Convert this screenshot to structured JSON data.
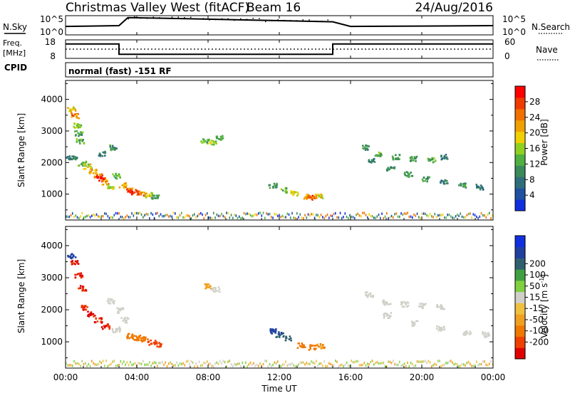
{
  "header": {
    "title": "Christmas Valley West (fitACF)",
    "beam": "Beam 16",
    "date": "24/Aug/2016"
  },
  "params": {
    "nsky_label": "N.Sky",
    "nsky_ticks": [
      "10^5",
      "10^0"
    ],
    "nsearch_label": "N.Search",
    "nsearch_ticks": [
      "10^5",
      "10^0"
    ],
    "freq_label": "Freq.",
    "freq_unit": "[MHz]",
    "freq_ticks": [
      "18",
      "8"
    ],
    "nave_label": "Nave",
    "nave_ticks": [
      "60",
      "0"
    ],
    "cpid_label": "CPID",
    "cpid_value": "normal (fast) -151 RF"
  },
  "x_axis": {
    "label": "Time UT",
    "ticks": [
      "00:00",
      "04:00",
      "08:00",
      "12:00",
      "16:00",
      "20:00",
      "00:00"
    ]
  },
  "colors": {
    "power_scale": [
      "#1030e0",
      "#2050a0",
      "#2e6e7a",
      "#3a8a5a",
      "#50b040",
      "#90d020",
      "#f0d000",
      "#f0a000",
      "#f07000",
      "#f03a00",
      "#ff0000"
    ],
    "velocity_scale": [
      "#e00000",
      "#f04000",
      "#f07800",
      "#f0a020",
      "#f0c040",
      "#d0d0c8",
      "#80d040",
      "#40a040",
      "#306070",
      "#2040a0",
      "#1030e0"
    ]
  },
  "chart_data": [
    {
      "type": "line",
      "name": "sky-and-search-noise",
      "title": "",
      "xlabel": "",
      "ylabel": "N.Sky",
      "y2label": "N.Search",
      "log_scale": true,
      "x": [
        0,
        3,
        3.5,
        7,
        11,
        15,
        16,
        20,
        24
      ],
      "series": [
        {
          "name": "N.Sky",
          "values": [
            2.2,
            2.4,
            4.5,
            4.2,
            3.8,
            3.4,
            2.2,
            2.3,
            2.4
          ]
        }
      ]
    },
    {
      "type": "line",
      "name": "frequency-and-nave",
      "title": "",
      "xlabel": "",
      "ylabel": "Freq. [MHz]",
      "ylim": [
        8,
        18
      ],
      "y2label": "Nave",
      "y2lim": [
        0,
        60
      ],
      "x": [
        0,
        3,
        3,
        15,
        15,
        24
      ],
      "series": [
        {
          "name": "Freq.",
          "values": [
            15.8,
            15.8,
            10.2,
            10.2,
            15.8,
            15.8
          ]
        },
        {
          "name": "Nave",
          "constant": 30
        }
      ]
    },
    {
      "type": "heatmap",
      "name": "power",
      "xlabel": "Time UT",
      "ylabel": "Slant Range [km]",
      "colorbar_label": "Power [dB]",
      "colorbar_ticks": [
        4,
        8,
        12,
        16,
        20,
        24,
        28
      ],
      "clim": [
        0,
        32
      ],
      "xlim": [
        0,
        24
      ],
      "ylim": [
        180,
        4600
      ],
      "y_ticks": [
        1000,
        2000,
        3000,
        4000
      ],
      "points": [
        [
          0.3,
          3700,
          20
        ],
        [
          0.5,
          3500,
          24
        ],
        [
          0.6,
          3200,
          16
        ],
        [
          0.7,
          2950,
          12
        ],
        [
          0.8,
          2700,
          14
        ],
        [
          0.1,
          2200,
          8
        ],
        [
          0.4,
          2150,
          10
        ],
        [
          0.9,
          2000,
          14
        ],
        [
          1.2,
          1900,
          18
        ],
        [
          1.5,
          1750,
          22
        ],
        [
          1.8,
          1600,
          26
        ],
        [
          2.0,
          1500,
          30
        ],
        [
          2.2,
          1400,
          22
        ],
        [
          2.5,
          1250,
          16
        ],
        [
          2.8,
          1600,
          14
        ],
        [
          3.2,
          1300,
          22
        ],
        [
          3.5,
          1150,
          26
        ],
        [
          3.8,
          1100,
          30
        ],
        [
          4.2,
          1050,
          24
        ],
        [
          4.6,
          1000,
          18
        ],
        [
          5.0,
          950,
          12
        ],
        [
          2.0,
          2300,
          8
        ],
        [
          2.6,
          2500,
          10
        ],
        [
          7.8,
          2700,
          14
        ],
        [
          8.2,
          2650,
          16
        ],
        [
          8.6,
          2800,
          12
        ],
        [
          11.6,
          1300,
          10
        ],
        [
          12.2,
          1150,
          14
        ],
        [
          12.8,
          1050,
          18
        ],
        [
          13.5,
          950,
          22
        ],
        [
          13.8,
          900,
          26
        ],
        [
          14.2,
          950,
          20
        ],
        [
          16.8,
          2500,
          10
        ],
        [
          17.5,
          2300,
          14
        ],
        [
          18.5,
          2200,
          12
        ],
        [
          19.5,
          2150,
          10
        ],
        [
          20.5,
          2100,
          12
        ],
        [
          21.2,
          2200,
          8
        ],
        [
          17.2,
          2100,
          8
        ],
        [
          18.2,
          1850,
          10
        ],
        [
          19.2,
          1650,
          12
        ],
        [
          20.2,
          1500,
          10
        ],
        [
          21.2,
          1400,
          8
        ],
        [
          22.2,
          1300,
          10
        ],
        [
          23.2,
          1250,
          8
        ]
      ],
      "ground_scatter_band": {
        "range_km": [
          200,
          380
        ],
        "xlim": [
          0,
          24
        ]
      }
    },
    {
      "type": "heatmap",
      "name": "velocity",
      "xlabel": "Time UT",
      "ylabel": "Slant Range [km]",
      "colorbar_label": "Velocity [m s^-1]",
      "colorbar_ticks": [
        -200,
        -100,
        -50,
        -15,
        15,
        50,
        100,
        200
      ],
      "clim": [
        -250,
        250
      ],
      "xlim": [
        0,
        24
      ],
      "ylim": [
        180,
        4600
      ],
      "y_ticks": [
        1000,
        2000,
        3000,
        4000
      ],
      "points": [
        [
          0.3,
          3700,
          150
        ],
        [
          0.5,
          3500,
          -200
        ],
        [
          0.7,
          3100,
          -220
        ],
        [
          0.9,
          2700,
          -200
        ],
        [
          1.0,
          2100,
          -200
        ],
        [
          1.4,
          1900,
          -220
        ],
        [
          1.8,
          1700,
          -210
        ],
        [
          2.2,
          1500,
          -200
        ],
        [
          2.5,
          2300,
          0
        ],
        [
          3.0,
          2000,
          0
        ],
        [
          3.3,
          1700,
          0
        ],
        [
          2.8,
          1400,
          0
        ],
        [
          3.6,
          1200,
          -80
        ],
        [
          4.0,
          1150,
          -60
        ],
        [
          4.4,
          1100,
          -80
        ],
        [
          4.8,
          1000,
          -120
        ],
        [
          5.2,
          950,
          -160
        ],
        [
          8.0,
          2750,
          -20
        ],
        [
          8.4,
          2650,
          0
        ],
        [
          11.6,
          1350,
          150
        ],
        [
          12.0,
          1250,
          100
        ],
        [
          12.4,
          1150,
          60
        ],
        [
          13.2,
          900,
          -60
        ],
        [
          13.8,
          850,
          -80
        ],
        [
          14.3,
          900,
          -50
        ],
        [
          17.0,
          2500,
          0
        ],
        [
          18.0,
          2250,
          0
        ],
        [
          19.0,
          2200,
          0
        ],
        [
          20.0,
          2150,
          0
        ],
        [
          21.0,
          2100,
          0
        ],
        [
          18.0,
          1850,
          0
        ],
        [
          19.5,
          1600,
          0
        ],
        [
          21.0,
          1450,
          0
        ],
        [
          22.5,
          1300,
          0
        ],
        [
          23.5,
          1250,
          0
        ]
      ],
      "ground_scatter_band": {
        "range_km": [
          200,
          380
        ],
        "xlim": [
          0,
          24
        ]
      }
    }
  ]
}
